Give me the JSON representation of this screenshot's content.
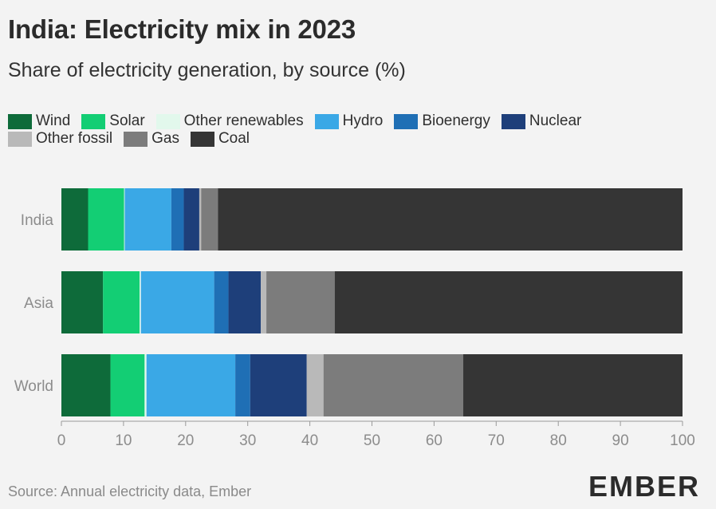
{
  "title": "India: Electricity mix in 2023",
  "subtitle": "Share of electricity generation, by source (%)",
  "source": "Source: Annual electricity data, Ember",
  "logo": "EMBER",
  "colors": {
    "Wind": "#0e6b3a",
    "Solar": "#13ce74",
    "Other renewables": "#e2f8ec",
    "Hydro": "#3aa8e6",
    "Bioenergy": "#1f6fb5",
    "Nuclear": "#1e3f7a",
    "Other fossil": "#b9b9b9",
    "Gas": "#7c7c7c",
    "Coal": "#353535"
  },
  "chart_data": {
    "type": "bar",
    "orientation": "horizontal",
    "stacked": true,
    "title": "India: Electricity mix in 2023",
    "subtitle": "Share of electricity generation, by source (%)",
    "categories": [
      "India",
      "Asia",
      "World"
    ],
    "xlim": [
      0,
      100
    ],
    "xticks": [
      0,
      10,
      20,
      30,
      40,
      50,
      60,
      70,
      80,
      90,
      100
    ],
    "legend_position": "top-left",
    "grid": false,
    "series": [
      {
        "name": "Wind",
        "values": [
          4.3,
          6.7,
          7.9
        ]
      },
      {
        "name": "Solar",
        "values": [
          5.8,
          5.9,
          5.5
        ]
      },
      {
        "name": "Other renewables",
        "values": [
          0.1,
          0.2,
          0.3
        ]
      },
      {
        "name": "Hydro",
        "values": [
          7.5,
          11.8,
          14.3
        ]
      },
      {
        "name": "Bioenergy",
        "values": [
          2.0,
          2.3,
          2.4
        ]
      },
      {
        "name": "Nuclear",
        "values": [
          2.5,
          5.2,
          9.1
        ]
      },
      {
        "name": "Other fossil",
        "values": [
          0.3,
          0.9,
          2.7
        ]
      },
      {
        "name": "Gas",
        "values": [
          2.7,
          11.0,
          22.5
        ]
      },
      {
        "name": "Coal",
        "values": [
          74.8,
          56.0,
          35.3
        ]
      }
    ]
  }
}
